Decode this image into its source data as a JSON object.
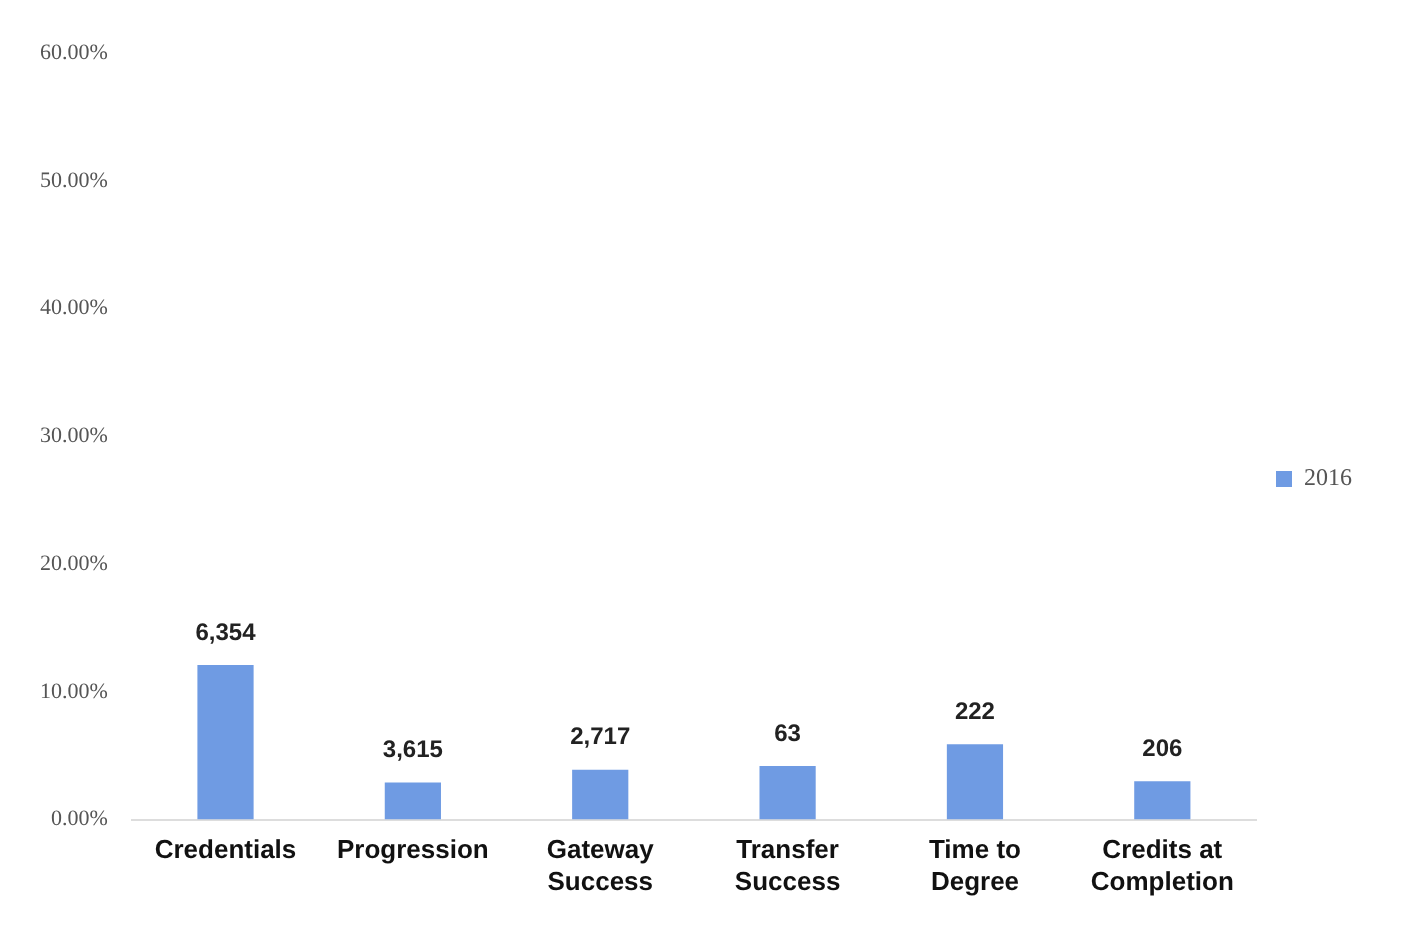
{
  "chart_data": {
    "type": "bar",
    "categories": [
      "Credentials",
      "Progression",
      "Gateway Success",
      "Transfer Success",
      "Time to Degree",
      "Credits at Completion"
    ],
    "series": [
      {
        "name": "2016",
        "color": "#6f9be3",
        "values": [
          12.1,
          2.9,
          3.9,
          4.2,
          5.9,
          3.0
        ]
      }
    ],
    "value_labels": [
      "6,354",
      "3,615",
      "2,717",
      "63",
      "222",
      "206"
    ],
    "ylim": [
      0,
      60
    ],
    "yticks": [
      {
        "value": 0,
        "label": "0.00%"
      },
      {
        "value": 10,
        "label": "10.00%"
      },
      {
        "value": 20,
        "label": "20.00%"
      },
      {
        "value": 30,
        "label": "30.00%"
      },
      {
        "value": 40,
        "label": "40.00%"
      },
      {
        "value": 50,
        "label": "50.00%"
      },
      {
        "value": 60,
        "label": "60.00%"
      }
    ],
    "grid": false,
    "legend": "right"
  }
}
